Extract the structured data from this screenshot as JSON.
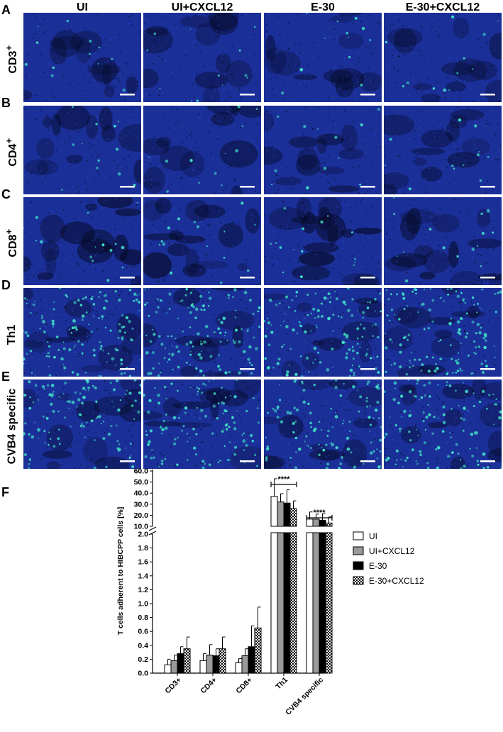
{
  "panel_letters": [
    "A",
    "B",
    "C",
    "D",
    "E"
  ],
  "panel_F_letter": "F",
  "columns": [
    "UI",
    "UI+CXCL12",
    "E-30",
    "E-30+CXCL12"
  ],
  "rows": [
    {
      "label": "CD3",
      "sup": "+",
      "density": 0.05,
      "dark": 0.35
    },
    {
      "label": "CD4",
      "sup": "+",
      "density": 0.05,
      "dark": 0.4
    },
    {
      "label": "CD8",
      "sup": "+",
      "density": 0.07,
      "dark": 0.65
    },
    {
      "label": "Th1",
      "sup": "",
      "density": 0.8,
      "dark": 0.35
    },
    {
      "label": "CVB4 specific",
      "sup": "",
      "density": 0.7,
      "dark": 0.4
    }
  ],
  "colors": {
    "background": "#1b2f99",
    "cell": "#3fe0c8",
    "shadow": "#050a26",
    "bar_gray": "#9a9a9a",
    "bar_black": "#000000"
  },
  "chart_data": {
    "type": "bar",
    "ylabel": "T cells adherent to HIBCPP cells [%]",
    "categories": [
      "CD3+",
      "CD4+",
      "CD8+",
      "Th1",
      "CVB4 specific"
    ],
    "series": [
      {
        "name": "UI",
        "values": [
          0.12,
          0.18,
          0.15,
          37.0,
          16.5
        ],
        "errors": [
          0.08,
          0.1,
          0.06,
          16.0,
          6.5
        ],
        "fill": "white"
      },
      {
        "name": "UI+CXCL12",
        "values": [
          0.18,
          0.26,
          0.25,
          32.0,
          16.5
        ],
        "errors": [
          0.08,
          0.15,
          0.1,
          7.5,
          4.5
        ],
        "fill": "gray"
      },
      {
        "name": "E-30",
        "values": [
          0.28,
          0.25,
          0.38,
          31.0,
          15.5
        ],
        "errors": [
          0.1,
          0.1,
          0.3,
          12.0,
          6.0
        ],
        "fill": "black"
      },
      {
        "name": "E-30+CXCL12",
        "values": [
          0.35,
          0.35,
          0.65,
          26.0,
          13.0
        ],
        "errors": [
          0.17,
          0.17,
          0.3,
          7.0,
          5.5
        ],
        "fill": "checker"
      }
    ],
    "y_lower": {
      "range": [
        0,
        2.0
      ],
      "ticks": [
        "0.0",
        "0.2",
        "0.4",
        "0.6",
        "0.8",
        "1.0",
        "1.2",
        "1.4",
        "1.6",
        "1.8",
        "2.0"
      ]
    },
    "y_upper": {
      "range": [
        10,
        60
      ],
      "ticks": [
        "10.0",
        "20.0",
        "30.0",
        "40.0",
        "50.0",
        "60.0"
      ]
    },
    "axis_break": true,
    "significance": [
      {
        "category": "Th1",
        "label": "****"
      },
      {
        "category": "CVB4 specific",
        "label": "****"
      }
    ],
    "legend_position": "right"
  }
}
